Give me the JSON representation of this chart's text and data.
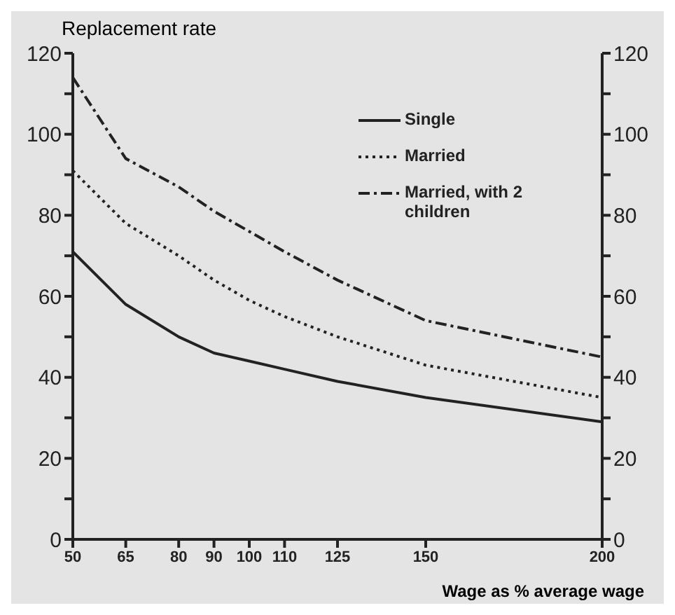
{
  "chart_data": {
    "type": "line",
    "ylabel": "Replacement rate",
    "xlabel": "Wage as % average wage",
    "x": [
      50,
      65,
      80,
      90,
      100,
      110,
      125,
      150,
      200
    ],
    "xlim": [
      50,
      200
    ],
    "xticks": [
      50,
      65,
      80,
      90,
      100,
      110,
      125,
      150,
      200
    ],
    "ylim": [
      0,
      120
    ],
    "yticks": [
      0,
      {
        "value": 10,
        "label": null
      },
      20,
      {
        "value": 30,
        "label": null
      },
      40,
      {
        "value": 50,
        "label": null
      },
      60,
      {
        "value": 70,
        "label": null
      },
      80,
      {
        "value": 90,
        "label": null
      },
      100,
      {
        "value": 110,
        "label": null
      },
      120
    ],
    "y2lim": [
      0,
      120
    ],
    "y2ticks": [
      0,
      {
        "value": 10,
        "label": null
      },
      20,
      {
        "value": 30,
        "label": null
      },
      40,
      {
        "value": 50,
        "label": null
      },
      60,
      {
        "value": 70,
        "label": null
      },
      80,
      {
        "value": 90,
        "label": null
      },
      100,
      {
        "value": 110,
        "label": null
      },
      120
    ],
    "grid": false,
    "legend": "top right",
    "marker": "none",
    "series": [
      {
        "name": "Single",
        "color": "#222222",
        "line_style": "solid",
        "values": [
          71,
          58,
          50,
          46,
          44,
          42,
          39,
          35,
          29
        ]
      },
      {
        "name": "Married",
        "color": "#222222",
        "line_style": "dotted",
        "values": [
          91,
          78,
          70,
          64,
          59,
          55,
          50,
          43,
          35
        ]
      },
      {
        "name": "Married, with 2 children",
        "color": "#222222",
        "line_style": "dashed",
        "values": [
          114,
          94,
          87,
          81,
          76,
          71,
          64,
          54,
          45
        ]
      }
    ]
  }
}
